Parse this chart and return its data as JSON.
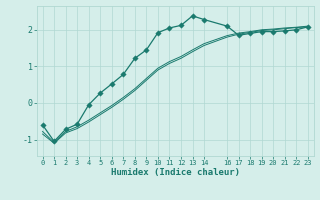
{
  "xlabel": "Humidex (Indice chaleur)",
  "background_color": "#d5eeea",
  "line_color": "#1a7a6e",
  "grid_color": "#b0d8d2",
  "xlim": [
    -0.5,
    23.5
  ],
  "ylim": [
    -1.45,
    2.65
  ],
  "xticks": [
    0,
    1,
    2,
    3,
    4,
    5,
    6,
    7,
    8,
    9,
    10,
    11,
    12,
    13,
    14,
    16,
    17,
    18,
    19,
    20,
    21,
    22,
    23
  ],
  "yticks": [
    -1,
    0,
    1,
    2
  ],
  "x_main": [
    0,
    1,
    2,
    3,
    4,
    5,
    6,
    7,
    8,
    9,
    10,
    11,
    12,
    13,
    14,
    16,
    17,
    18,
    19,
    20,
    21,
    22,
    23
  ],
  "y_main": [
    -0.6,
    -1.05,
    -0.72,
    -0.58,
    -0.05,
    0.27,
    0.52,
    0.78,
    1.22,
    1.45,
    1.92,
    2.05,
    2.12,
    2.38,
    2.28,
    2.1,
    1.85,
    1.9,
    1.95,
    1.95,
    1.97,
    2.0,
    2.08
  ],
  "x_line2": [
    0,
    1,
    2,
    3,
    4,
    5,
    6,
    7,
    8,
    9,
    10,
    11,
    12,
    13,
    14,
    16,
    17,
    18,
    19,
    20,
    21,
    22,
    23
  ],
  "y_line2": [
    -0.85,
    -1.1,
    -0.82,
    -0.7,
    -0.52,
    -0.32,
    -0.12,
    0.1,
    0.34,
    0.62,
    0.9,
    1.08,
    1.22,
    1.4,
    1.57,
    1.8,
    1.88,
    1.93,
    1.98,
    2.0,
    2.03,
    2.06,
    2.08
  ],
  "x_line3": [
    0,
    1,
    2,
    3,
    4,
    5,
    6,
    7,
    8,
    9,
    10,
    11,
    12,
    13,
    14,
    16,
    17,
    18,
    19,
    20,
    21,
    22,
    23
  ],
  "y_line3": [
    -0.78,
    -1.08,
    -0.78,
    -0.65,
    -0.47,
    -0.27,
    -0.07,
    0.15,
    0.39,
    0.67,
    0.95,
    1.13,
    1.27,
    1.45,
    1.62,
    1.84,
    1.91,
    1.95,
    2.0,
    2.02,
    2.05,
    2.07,
    2.1
  ]
}
